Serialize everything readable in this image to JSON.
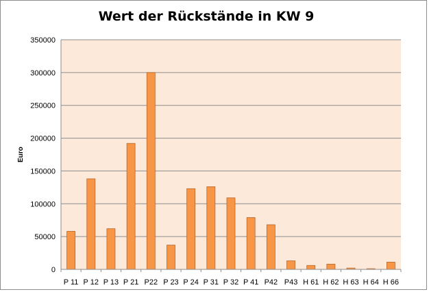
{
  "chart_data": {
    "type": "bar",
    "title": "Wert der Rückstände in KW 9",
    "xlabel": "",
    "ylabel": "Euro",
    "ylim": [
      0,
      350000
    ],
    "yticks": [
      "0",
      "50000",
      "100000",
      "150000",
      "200000",
      "250000",
      "300000",
      "350000"
    ],
    "grid": true,
    "legend": "none",
    "categories": [
      "P 11",
      "P 12",
      "P 13",
      "P 21",
      "P22",
      "P 23",
      "P 24",
      "P 31",
      "P 32",
      "P 41",
      "P42",
      "P43",
      "H 61",
      "H 62",
      "H 63",
      "H 64",
      "H 66"
    ],
    "values": [
      58000,
      138000,
      62000,
      192000,
      300000,
      37000,
      123000,
      126000,
      109000,
      79000,
      68000,
      13000,
      6000,
      8000,
      2000,
      1000,
      11000
    ],
    "colors": {
      "bar_fill": "#f79646",
      "bar_stroke": "#b8652a",
      "plot_background": "#fde9d9",
      "gridline": "#8c8c8c"
    }
  }
}
